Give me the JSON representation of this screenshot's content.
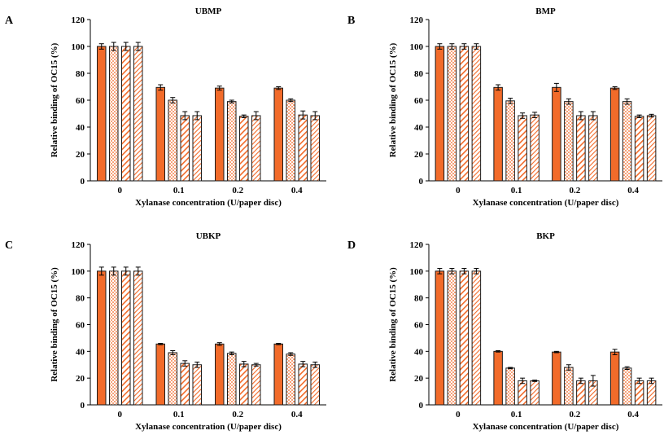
{
  "colors": {
    "bar": "#f26b2a",
    "checker": "#f7a27a",
    "stroke": "#1a1a1a"
  },
  "chart_data": [
    {
      "type": "bar",
      "letter": "A",
      "title": "UBMP",
      "xlabel": "Xylanase concentration (U/paper disc)",
      "ylabel": "Relative binding of OC15 (%)",
      "ylim": [
        0,
        120
      ],
      "yticks": [
        "0",
        "20",
        "40",
        "60",
        "80",
        "100",
        "120"
      ],
      "categories": [
        "0",
        "0.1",
        "0.2",
        "0.4"
      ],
      "series": [
        {
          "pattern": "solid",
          "values": [
            100,
            69.5,
            69,
            69
          ],
          "errors": [
            2,
            2,
            1.5,
            1
          ]
        },
        {
          "pattern": "checker",
          "values": [
            100,
            60,
            59,
            60
          ],
          "errors": [
            3,
            2,
            1,
            1
          ]
        },
        {
          "pattern": "hatch-wide",
          "values": [
            100,
            48.5,
            48,
            49
          ],
          "errors": [
            3,
            3,
            1,
            3
          ]
        },
        {
          "pattern": "hatch-fine",
          "values": [
            100,
            48.5,
            48.5,
            48.5
          ],
          "errors": [
            3,
            3,
            3,
            3
          ]
        }
      ]
    },
    {
      "type": "bar",
      "letter": "B",
      "title": "BMP",
      "xlabel": "Xylanase concentration (U/paper disc)",
      "ylabel": "Relative binding of OC15 (%)",
      "ylim": [
        0,
        120
      ],
      "yticks": [
        "0",
        "20",
        "40",
        "60",
        "80",
        "100",
        "120"
      ],
      "categories": [
        "0",
        "0.1",
        "0.2",
        "0.4"
      ],
      "series": [
        {
          "pattern": "solid",
          "values": [
            100,
            69.5,
            69.5,
            69
          ],
          "errors": [
            2,
            2,
            3,
            1
          ]
        },
        {
          "pattern": "checker",
          "values": [
            100,
            59.5,
            59,
            59
          ],
          "errors": [
            2,
            2,
            2,
            2
          ]
        },
        {
          "pattern": "hatch-wide",
          "values": [
            100,
            48.5,
            48.5,
            48
          ],
          "errors": [
            2,
            2,
            3,
            1
          ]
        },
        {
          "pattern": "hatch-fine",
          "values": [
            100,
            49,
            48.5,
            48.5
          ],
          "errors": [
            2,
            2,
            3,
            1
          ]
        }
      ]
    },
    {
      "type": "bar",
      "letter": "C",
      "title": "UBKP",
      "xlabel": "Xylanase concentration (U/paper disc)",
      "ylabel": "Relative binding of OC15 (%)",
      "ylim": [
        0,
        120
      ],
      "yticks": [
        "0",
        "20",
        "40",
        "60",
        "80",
        "100",
        "120"
      ],
      "categories": [
        "0",
        "0.1",
        "0.2",
        "0.4"
      ],
      "series": [
        {
          "pattern": "solid",
          "values": [
            100,
            45.5,
            45.5,
            45.5
          ],
          "errors": [
            3,
            0.5,
            1,
            0.5
          ]
        },
        {
          "pattern": "checker",
          "values": [
            100,
            39,
            38.5,
            38
          ],
          "errors": [
            3,
            1.5,
            1,
            1
          ]
        },
        {
          "pattern": "hatch-wide",
          "values": [
            100,
            31,
            30.5,
            30.5
          ],
          "errors": [
            3,
            2,
            2,
            2
          ]
        },
        {
          "pattern": "hatch-fine",
          "values": [
            100,
            30,
            30,
            30
          ],
          "errors": [
            3,
            2,
            1,
            2
          ]
        }
      ]
    },
    {
      "type": "bar",
      "letter": "D",
      "title": "BKP",
      "xlabel": "Xylanase concentration (U/paper disc)",
      "ylabel": "Relative binding of OC15 (%)",
      "ylim": [
        0,
        120
      ],
      "yticks": [
        "0",
        "20",
        "40",
        "60",
        "80",
        "100",
        "120"
      ],
      "categories": [
        "0",
        "0.1",
        "0.2",
        "0.4"
      ],
      "series": [
        {
          "pattern": "solid",
          "values": [
            100,
            40,
            39.5,
            39.5
          ],
          "errors": [
            2,
            0.5,
            0.5,
            2
          ]
        },
        {
          "pattern": "checker",
          "values": [
            100,
            27.5,
            28,
            27.5
          ],
          "errors": [
            2,
            0.5,
            2,
            1
          ]
        },
        {
          "pattern": "hatch-wide",
          "values": [
            100,
            18,
            18,
            18
          ],
          "errors": [
            2,
            2,
            2,
            2
          ]
        },
        {
          "pattern": "hatch-fine",
          "values": [
            100,
            18,
            18,
            18
          ],
          "errors": [
            2,
            0.5,
            4,
            2
          ]
        }
      ]
    }
  ]
}
